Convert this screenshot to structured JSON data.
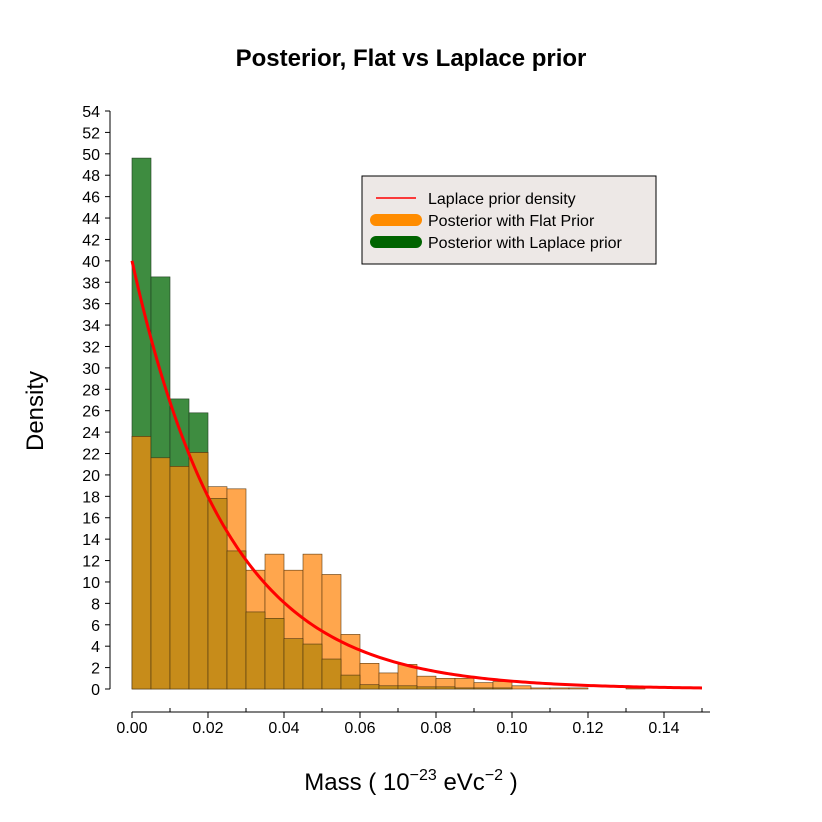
{
  "chart_data": {
    "type": "bar",
    "title": "Posterior, Flat vs Laplace prior",
    "xlabel_base": "Mass ( 10",
    "xlabel_exp1": "−23",
    "xlabel_mid": " eVc",
    "xlabel_exp2": "−2",
    "xlabel_end": " )",
    "ylabel": "Density",
    "xlim": [
      0.0,
      0.15
    ],
    "ylim": [
      0,
      54
    ],
    "x_ticks": [
      "0.00",
      "0.02",
      "0.04",
      "0.06",
      "0.08",
      "0.10",
      "0.12",
      "0.14"
    ],
    "x_tick_values": [
      0.0,
      0.02,
      0.04,
      0.06,
      0.08,
      0.1,
      0.12,
      0.14
    ],
    "y_ticks": [
      "0",
      "2",
      "4",
      "6",
      "8",
      "10",
      "12",
      "14",
      "16",
      "18",
      "20",
      "22",
      "24",
      "26",
      "28",
      "30",
      "32",
      "34",
      "36",
      "38",
      "40",
      "42",
      "44",
      "46",
      "48",
      "50",
      "52",
      "54"
    ],
    "y_tick_values": [
      0,
      2,
      4,
      6,
      8,
      10,
      12,
      14,
      16,
      18,
      20,
      22,
      24,
      26,
      28,
      30,
      32,
      34,
      36,
      38,
      40,
      42,
      44,
      46,
      48,
      50,
      52,
      54
    ],
    "bin_width": 0.005,
    "legend_position": "top-right",
    "legend": [
      {
        "label": "Laplace prior density",
        "color": "#ff0000",
        "kind": "line"
      },
      {
        "label": "Posterior with Flat Prior",
        "color": "#ff8c00",
        "kind": "thick"
      },
      {
        "label": "Posterior with Laplace prior",
        "color": "#006400",
        "kind": "thick"
      }
    ],
    "series": [
      {
        "name": "Posterior with Flat Prior",
        "fill": "#ffa64d",
        "bin_starts": [
          0.0,
          0.005,
          0.01,
          0.015,
          0.02,
          0.025,
          0.03,
          0.035,
          0.04,
          0.045,
          0.05,
          0.055,
          0.06,
          0.065,
          0.07,
          0.075,
          0.08,
          0.085,
          0.09,
          0.095,
          0.1,
          0.105,
          0.11,
          0.115,
          0.12,
          0.125,
          0.13,
          0.135,
          0.14,
          0.145
        ],
        "values": [
          23.6,
          21.6,
          20.8,
          22.1,
          18.9,
          18.7,
          11.1,
          12.6,
          11.1,
          12.6,
          10.7,
          5.1,
          2.4,
          1.5,
          2.3,
          1.2,
          1.0,
          1.0,
          0.6,
          0.7,
          0.3,
          0.1,
          0.1,
          0.1,
          0.0,
          0.0,
          0.1,
          0.0,
          0.0,
          0.0
        ]
      },
      {
        "name": "Posterior with Laplace prior",
        "fill": "#3e8c40",
        "bin_starts": [
          0.0,
          0.005,
          0.01,
          0.015,
          0.02,
          0.025,
          0.03,
          0.035,
          0.04,
          0.045,
          0.05,
          0.055,
          0.06,
          0.065,
          0.07,
          0.075,
          0.08,
          0.085,
          0.09,
          0.095,
          0.1,
          0.105,
          0.11,
          0.115,
          0.12,
          0.125,
          0.13,
          0.135,
          0.14,
          0.145
        ],
        "values": [
          49.6,
          38.5,
          27.1,
          25.8,
          17.8,
          12.9,
          7.2,
          6.6,
          4.7,
          4.2,
          2.8,
          1.3,
          0.4,
          0.3,
          0.3,
          0.2,
          0.2,
          0.1,
          0.1,
          0.1,
          0.0,
          0.0,
          0.0,
          0.0,
          0.0,
          0.0,
          0.0,
          0.0,
          0.0,
          0.0
        ]
      },
      {
        "name": "Laplace prior density",
        "type": "line",
        "color": "#ff0000",
        "function": "40*exp(-40*x)",
        "x_range": [
          0.0,
          0.15
        ]
      }
    ],
    "overlap_fill": "#c78c1a"
  }
}
